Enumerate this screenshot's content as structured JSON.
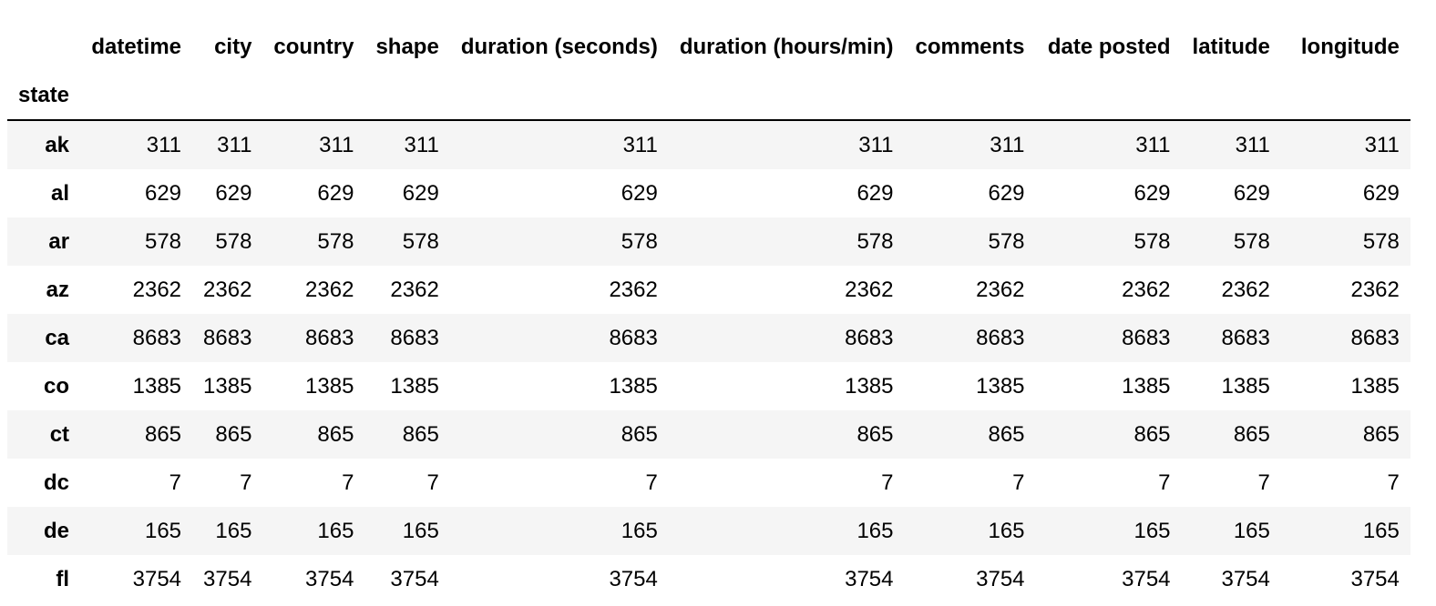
{
  "table": {
    "index_name": "state",
    "columns": [
      "datetime",
      "city",
      "country",
      "shape",
      "duration (seconds)",
      "duration (hours/min)",
      "comments",
      "date posted",
      "latitude",
      "longitude"
    ],
    "rows": [
      {
        "index": "ak",
        "values": [
          "311",
          "311",
          "311",
          "311",
          "311",
          "311",
          "311",
          "311",
          "311",
          "311"
        ]
      },
      {
        "index": "al",
        "values": [
          "629",
          "629",
          "629",
          "629",
          "629",
          "629",
          "629",
          "629",
          "629",
          "629"
        ]
      },
      {
        "index": "ar",
        "values": [
          "578",
          "578",
          "578",
          "578",
          "578",
          "578",
          "578",
          "578",
          "578",
          "578"
        ]
      },
      {
        "index": "az",
        "values": [
          "2362",
          "2362",
          "2362",
          "2362",
          "2362",
          "2362",
          "2362",
          "2362",
          "2362",
          "2362"
        ]
      },
      {
        "index": "ca",
        "values": [
          "8683",
          "8683",
          "8683",
          "8683",
          "8683",
          "8683",
          "8683",
          "8683",
          "8683",
          "8683"
        ]
      },
      {
        "index": "co",
        "values": [
          "1385",
          "1385",
          "1385",
          "1385",
          "1385",
          "1385",
          "1385",
          "1385",
          "1385",
          "1385"
        ]
      },
      {
        "index": "ct",
        "values": [
          "865",
          "865",
          "865",
          "865",
          "865",
          "865",
          "865",
          "865",
          "865",
          "865"
        ]
      },
      {
        "index": "dc",
        "values": [
          "7",
          "7",
          "7",
          "7",
          "7",
          "7",
          "7",
          "7",
          "7",
          "7"
        ]
      },
      {
        "index": "de",
        "values": [
          "165",
          "165",
          "165",
          "165",
          "165",
          "165",
          "165",
          "165",
          "165",
          "165"
        ]
      },
      {
        "index": "fl",
        "values": [
          "3754",
          "3754",
          "3754",
          "3754",
          "3754",
          "3754",
          "3754",
          "3754",
          "3754",
          "3754"
        ]
      }
    ]
  },
  "colors": {
    "stripe": "#f5f5f5",
    "header_rule": "#000000",
    "text": "#000000"
  }
}
